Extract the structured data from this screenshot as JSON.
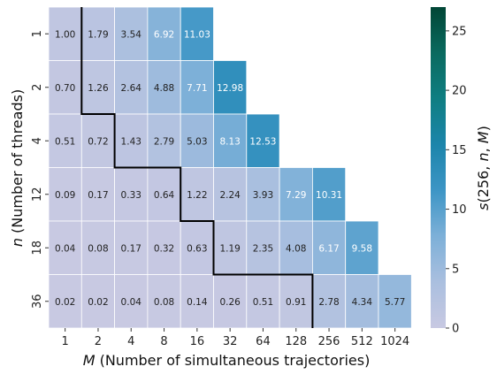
{
  "chart_data": {
    "type": "heatmap",
    "xlabel_var": "M",
    "xlabel_text": " (Number of simultaneous trajectories)",
    "ylabel_var": "n",
    "ylabel_text": " (Number of threads)",
    "x_categories": [
      "1",
      "2",
      "4",
      "8",
      "16",
      "32",
      "64",
      "128",
      "256",
      "512",
      "1024"
    ],
    "y_categories": [
      "1",
      "2",
      "4",
      "12",
      "18",
      "36"
    ],
    "values": [
      [
        1.0,
        1.79,
        3.54,
        6.92,
        11.03,
        null,
        null,
        null,
        null,
        null,
        null
      ],
      [
        0.7,
        1.26,
        2.64,
        4.88,
        7.71,
        12.98,
        null,
        null,
        null,
        null,
        null
      ],
      [
        0.51,
        0.72,
        1.43,
        2.79,
        5.03,
        8.13,
        12.53,
        null,
        null,
        null,
        null
      ],
      [
        0.09,
        0.17,
        0.33,
        0.64,
        1.22,
        2.24,
        3.93,
        7.29,
        10.31,
        null,
        null
      ],
      [
        0.04,
        0.08,
        0.17,
        0.32,
        0.63,
        1.19,
        2.35,
        4.08,
        6.17,
        9.58,
        null
      ],
      [
        0.02,
        0.02,
        0.04,
        0.08,
        0.14,
        0.26,
        0.51,
        0.91,
        2.78,
        4.34,
        5.77
      ]
    ],
    "value_labels": [
      [
        "1.00",
        "1.79",
        "3.54",
        "6.92",
        "11.03",
        "",
        "",
        "",
        "",
        "",
        ""
      ],
      [
        "0.70",
        "1.26",
        "2.64",
        "4.88",
        "7.71",
        "12.98",
        "",
        "",
        "",
        "",
        ""
      ],
      [
        "0.51",
        "0.72",
        "1.43",
        "2.79",
        "5.03",
        "8.13",
        "12.53",
        "",
        "",
        "",
        ""
      ],
      [
        "0.09",
        "0.17",
        "0.33",
        "0.64",
        "1.22",
        "2.24",
        "3.93",
        "7.29",
        "10.31",
        "",
        ""
      ],
      [
        "0.04",
        "0.08",
        "0.17",
        "0.32",
        "0.63",
        "1.19",
        "2.35",
        "4.08",
        "6.17",
        "9.58",
        ""
      ],
      [
        "0.02",
        "0.02",
        "0.04",
        "0.08",
        "0.14",
        "0.26",
        "0.51",
        "0.91",
        "2.78",
        "4.34",
        "5.77"
      ]
    ],
    "boundary_cut_after_column": [
      1,
      1,
      2,
      4,
      5,
      8
    ],
    "colorbar": {
      "label": "s(256, n, M)",
      "range": [
        0,
        27
      ],
      "ticks": [
        0,
        5,
        10,
        15,
        20,
        25
      ],
      "colormap": [
        "#c8c9e2",
        "#aabfdf",
        "#7db0d8",
        "#3d95c5",
        "#1c85ab",
        "#0f7e82",
        "#0a6a5f",
        "#014636"
      ]
    },
    "grid": false,
    "boundary_line_color": "#000000"
  }
}
